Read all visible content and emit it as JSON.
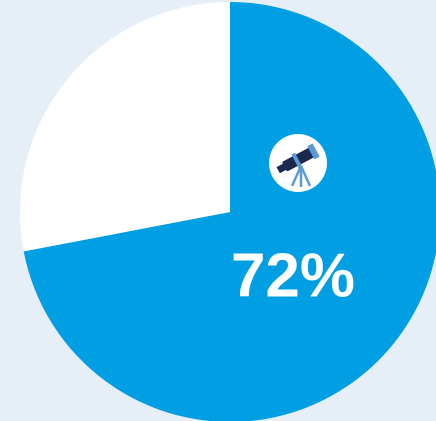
{
  "chart_data": {
    "type": "pie",
    "categories": [
      null,
      null
    ],
    "values": [
      72,
      28
    ],
    "value_labels": [
      "72%",
      null
    ],
    "colors": [
      "#009fe3",
      "#ffffff"
    ]
  }
}
